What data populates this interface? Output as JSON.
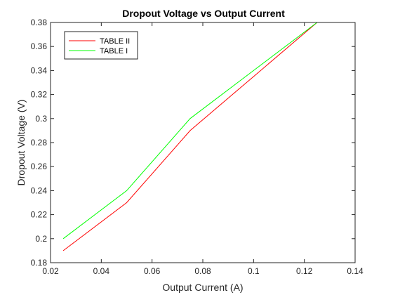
{
  "chart_data": {
    "type": "line",
    "title": "Dropout Voltage vs Output Current",
    "xlabel": "Output Current (A)",
    "ylabel": "Dropout Voltage (V)",
    "xlim": [
      0.02,
      0.14
    ],
    "ylim": [
      0.18,
      0.38
    ],
    "xticks": [
      0.02,
      0.04,
      0.06,
      0.08,
      0.1,
      0.12,
      0.14
    ],
    "xtick_labels": [
      "0.02",
      "0.04",
      "0.06",
      "0.08",
      "0.1",
      "0.12",
      "0.14"
    ],
    "yticks": [
      0.18,
      0.2,
      0.22,
      0.24,
      0.26,
      0.28,
      0.3,
      0.32,
      0.34,
      0.36,
      0.38
    ],
    "ytick_labels": [
      "0.18",
      "0.2",
      "0.22",
      "0.24",
      "0.26",
      "0.28",
      "0.3",
      "0.32",
      "0.34",
      "0.36",
      "0.38"
    ],
    "grid": false,
    "legend_position": "top-left",
    "series": [
      {
        "name": "TABLE II",
        "color": "#ff0000",
        "x": [
          0.025,
          0.05,
          0.075,
          0.1,
          0.125
        ],
        "y": [
          0.19,
          0.23,
          0.29,
          0.335,
          0.38
        ]
      },
      {
        "name": "TABLE I",
        "color": "#00ff00",
        "x": [
          0.025,
          0.05,
          0.075,
          0.1,
          0.125
        ],
        "y": [
          0.2,
          0.24,
          0.3,
          0.34,
          0.38
        ]
      }
    ]
  }
}
